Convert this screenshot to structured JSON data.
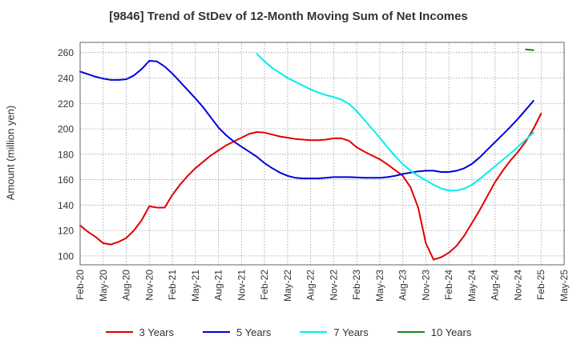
{
  "colors": {
    "series": [
      "#e00000",
      "#0000dd",
      "#00eeee",
      "#118811"
    ],
    "grid": "#999999",
    "axis": "#666666",
    "text": "#333333"
  },
  "chart_data": {
    "type": "line",
    "title": "[9846]  Trend of StDev of 12-Month Moving Sum of Net Incomes",
    "xlabel": "",
    "ylabel": "Amount (million yen)",
    "x_tick_labels": [
      "Feb-20",
      "May-20",
      "Aug-20",
      "Nov-20",
      "Feb-21",
      "May-21",
      "Aug-21",
      "Nov-21",
      "Feb-22",
      "May-22",
      "Aug-22",
      "Nov-22",
      "Feb-23",
      "May-23",
      "Aug-23",
      "Nov-23",
      "Feb-24",
      "May-24",
      "Aug-24",
      "Nov-24",
      "Feb-25",
      "May-25"
    ],
    "y_ticks": [
      100,
      120,
      140,
      160,
      180,
      200,
      220,
      240,
      260
    ],
    "ylim": [
      93,
      268
    ],
    "grid": true,
    "legend_position": "bottom",
    "series": [
      {
        "name": "3 Years",
        "points": [
          [
            "2020-02",
            124
          ],
          [
            "2020-03",
            119
          ],
          [
            "2020-04",
            115
          ],
          [
            "2020-05",
            110
          ],
          [
            "2020-06",
            109
          ],
          [
            "2020-07",
            111
          ],
          [
            "2020-08",
            114
          ],
          [
            "2020-09",
            120
          ],
          [
            "2020-10",
            128
          ],
          [
            "2020-11",
            139
          ],
          [
            "2020-12",
            138
          ],
          [
            "2021-01",
            138
          ],
          [
            "2021-02",
            148
          ],
          [
            "2021-03",
            156
          ],
          [
            "2021-04",
            163
          ],
          [
            "2021-05",
            169
          ],
          [
            "2021-06",
            174
          ],
          [
            "2021-07",
            179
          ],
          [
            "2021-08",
            183
          ],
          [
            "2021-09",
            187
          ],
          [
            "2021-10",
            190
          ],
          [
            "2021-11",
            193
          ],
          [
            "2021-12",
            196
          ],
          [
            "2022-01",
            197.5
          ],
          [
            "2022-02",
            197
          ],
          [
            "2022-03",
            195.5
          ],
          [
            "2022-04",
            194
          ],
          [
            "2022-05",
            193
          ],
          [
            "2022-06",
            192
          ],
          [
            "2022-07",
            191.5
          ],
          [
            "2022-08",
            191
          ],
          [
            "2022-09",
            191
          ],
          [
            "2022-10",
            191.5
          ],
          [
            "2022-11",
            192.5
          ],
          [
            "2022-12",
            192.5
          ],
          [
            "2023-01",
            190.5
          ],
          [
            "2023-02",
            185.5
          ],
          [
            "2023-03",
            182
          ],
          [
            "2023-04",
            179
          ],
          [
            "2023-05",
            176
          ],
          [
            "2023-06",
            172
          ],
          [
            "2023-07",
            167.5
          ],
          [
            "2023-08",
            163
          ],
          [
            "2023-09",
            154
          ],
          [
            "2023-10",
            138
          ],
          [
            "2023-11",
            110
          ],
          [
            "2023-12",
            97
          ],
          [
            "2024-01",
            99
          ],
          [
            "2024-02",
            102.5
          ],
          [
            "2024-03",
            108
          ],
          [
            "2024-04",
            116
          ],
          [
            "2024-05",
            126
          ],
          [
            "2024-06",
            136
          ],
          [
            "2024-07",
            147
          ],
          [
            "2024-08",
            158
          ],
          [
            "2024-09",
            167
          ],
          [
            "2024-10",
            175
          ],
          [
            "2024-11",
            182
          ],
          [
            "2024-12",
            190
          ],
          [
            "2025-01",
            200
          ],
          [
            "2025-02",
            212
          ]
        ]
      },
      {
        "name": "5 Years",
        "points": [
          [
            "2020-02",
            245
          ],
          [
            "2020-03",
            243
          ],
          [
            "2020-04",
            241
          ],
          [
            "2020-05",
            239.5
          ],
          [
            "2020-06",
            238.5
          ],
          [
            "2020-07",
            238.5
          ],
          [
            "2020-08",
            239
          ],
          [
            "2020-09",
            242
          ],
          [
            "2020-10",
            247
          ],
          [
            "2020-11",
            253.5
          ],
          [
            "2020-12",
            253
          ],
          [
            "2021-01",
            249
          ],
          [
            "2021-02",
            243.5
          ],
          [
            "2021-03",
            237
          ],
          [
            "2021-04",
            230.5
          ],
          [
            "2021-05",
            224
          ],
          [
            "2021-06",
            217
          ],
          [
            "2021-07",
            209
          ],
          [
            "2021-08",
            201
          ],
          [
            "2021-09",
            195
          ],
          [
            "2021-10",
            190
          ],
          [
            "2021-11",
            186
          ],
          [
            "2021-12",
            182
          ],
          [
            "2022-01",
            178
          ],
          [
            "2022-02",
            173
          ],
          [
            "2022-03",
            169
          ],
          [
            "2022-04",
            165.5
          ],
          [
            "2022-05",
            163
          ],
          [
            "2022-06",
            161.5
          ],
          [
            "2022-07",
            161
          ],
          [
            "2022-08",
            161
          ],
          [
            "2022-09",
            161
          ],
          [
            "2022-10",
            161.5
          ],
          [
            "2022-11",
            162
          ],
          [
            "2022-12",
            162
          ],
          [
            "2023-01",
            162
          ],
          [
            "2023-02",
            161.8
          ],
          [
            "2023-03",
            161.5
          ],
          [
            "2023-04",
            161.5
          ],
          [
            "2023-05",
            161.5
          ],
          [
            "2023-06",
            162
          ],
          [
            "2023-07",
            163
          ],
          [
            "2023-08",
            164.5
          ],
          [
            "2023-09",
            165.5
          ],
          [
            "2023-10",
            166.5
          ],
          [
            "2023-11",
            167
          ],
          [
            "2023-12",
            167
          ],
          [
            "2024-01",
            166
          ],
          [
            "2024-02",
            166
          ],
          [
            "2024-03",
            167
          ],
          [
            "2024-04",
            169
          ],
          [
            "2024-05",
            172.5
          ],
          [
            "2024-06",
            177.5
          ],
          [
            "2024-07",
            183.5
          ],
          [
            "2024-08",
            189.5
          ],
          [
            "2024-09",
            195.5
          ],
          [
            "2024-10",
            201.5
          ],
          [
            "2024-11",
            208
          ],
          [
            "2024-12",
            215
          ],
          [
            "2025-01",
            222
          ]
        ]
      },
      {
        "name": "7 Years",
        "points": [
          [
            "2022-01",
            259
          ],
          [
            "2022-02",
            253
          ],
          [
            "2022-03",
            248
          ],
          [
            "2022-04",
            244
          ],
          [
            "2022-05",
            240
          ],
          [
            "2022-06",
            237
          ],
          [
            "2022-07",
            234
          ],
          [
            "2022-08",
            231
          ],
          [
            "2022-09",
            228.5
          ],
          [
            "2022-10",
            226.5
          ],
          [
            "2022-11",
            225
          ],
          [
            "2022-12",
            223
          ],
          [
            "2023-01",
            219.5
          ],
          [
            "2023-02",
            214
          ],
          [
            "2023-03",
            207
          ],
          [
            "2023-04",
            200
          ],
          [
            "2023-05",
            193
          ],
          [
            "2023-06",
            185.5
          ],
          [
            "2023-07",
            178.5
          ],
          [
            "2023-08",
            172
          ],
          [
            "2023-09",
            167
          ],
          [
            "2023-10",
            163
          ],
          [
            "2023-11",
            159.5
          ],
          [
            "2023-12",
            156
          ],
          [
            "2024-01",
            153
          ],
          [
            "2024-02",
            151.5
          ],
          [
            "2024-03",
            151.5
          ],
          [
            "2024-04",
            153
          ],
          [
            "2024-05",
            156
          ],
          [
            "2024-06",
            160.5
          ],
          [
            "2024-07",
            165.5
          ],
          [
            "2024-08",
            170.5
          ],
          [
            "2024-09",
            175.5
          ],
          [
            "2024-10",
            180.5
          ],
          [
            "2024-11",
            186
          ],
          [
            "2024-12",
            191.5
          ],
          [
            "2025-01",
            197
          ]
        ]
      },
      {
        "name": "10 Years",
        "points": [
          [
            "2024-12",
            262.5
          ],
          [
            "2025-01",
            261.8
          ]
        ]
      }
    ]
  }
}
